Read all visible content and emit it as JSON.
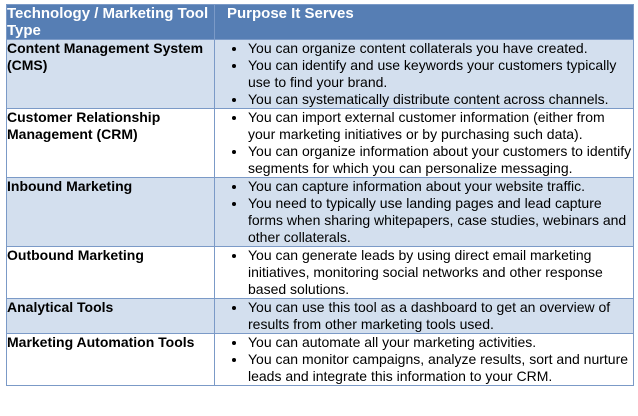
{
  "colors": {
    "header_bg": "#567EB4",
    "header_text": "#FFFFFF",
    "row_shaded_bg": "#D3DFEE",
    "row_plain_bg": "#FFFFFF",
    "border": "#7B9AC7",
    "body_text": "#000000"
  },
  "table": {
    "columns": {
      "tool_type": "Technology / Marketing Tool Type",
      "purpose": "Purpose It Serves"
    },
    "rows": [
      {
        "tool": "Content Management System (CMS)",
        "purposes": [
          "You can organize content collaterals you have created.",
          "You can identify and use keywords your customers typically use to find your brand.",
          "You can systematically distribute content across channels."
        ]
      },
      {
        "tool": "Customer Relationship Management (CRM)",
        "purposes": [
          "You can import external customer information (either from your marketing initiatives or by purchasing such data).",
          "You can organize information about your customers to identify segments for which you can personalize messaging."
        ]
      },
      {
        "tool": "Inbound Marketing",
        "purposes": [
          "You can capture information about your website traffic.",
          "You need to typically use landing pages and lead capture forms when sharing whitepapers, case studies, webinars and other collaterals."
        ]
      },
      {
        "tool": "Outbound Marketing",
        "purposes": [
          "You can generate leads by using direct email marketing initiatives, monitoring social networks and other response based solutions."
        ]
      },
      {
        "tool": "Analytical Tools",
        "purposes": [
          "You can use this tool as a dashboard to get an overview of results from other marketing tools used."
        ]
      },
      {
        "tool": "Marketing Automation Tools",
        "purposes": [
          "You can automate all your marketing activities.",
          "You can monitor campaigns, analyze results, sort and nurture leads and integrate this information to your CRM."
        ]
      }
    ]
  }
}
